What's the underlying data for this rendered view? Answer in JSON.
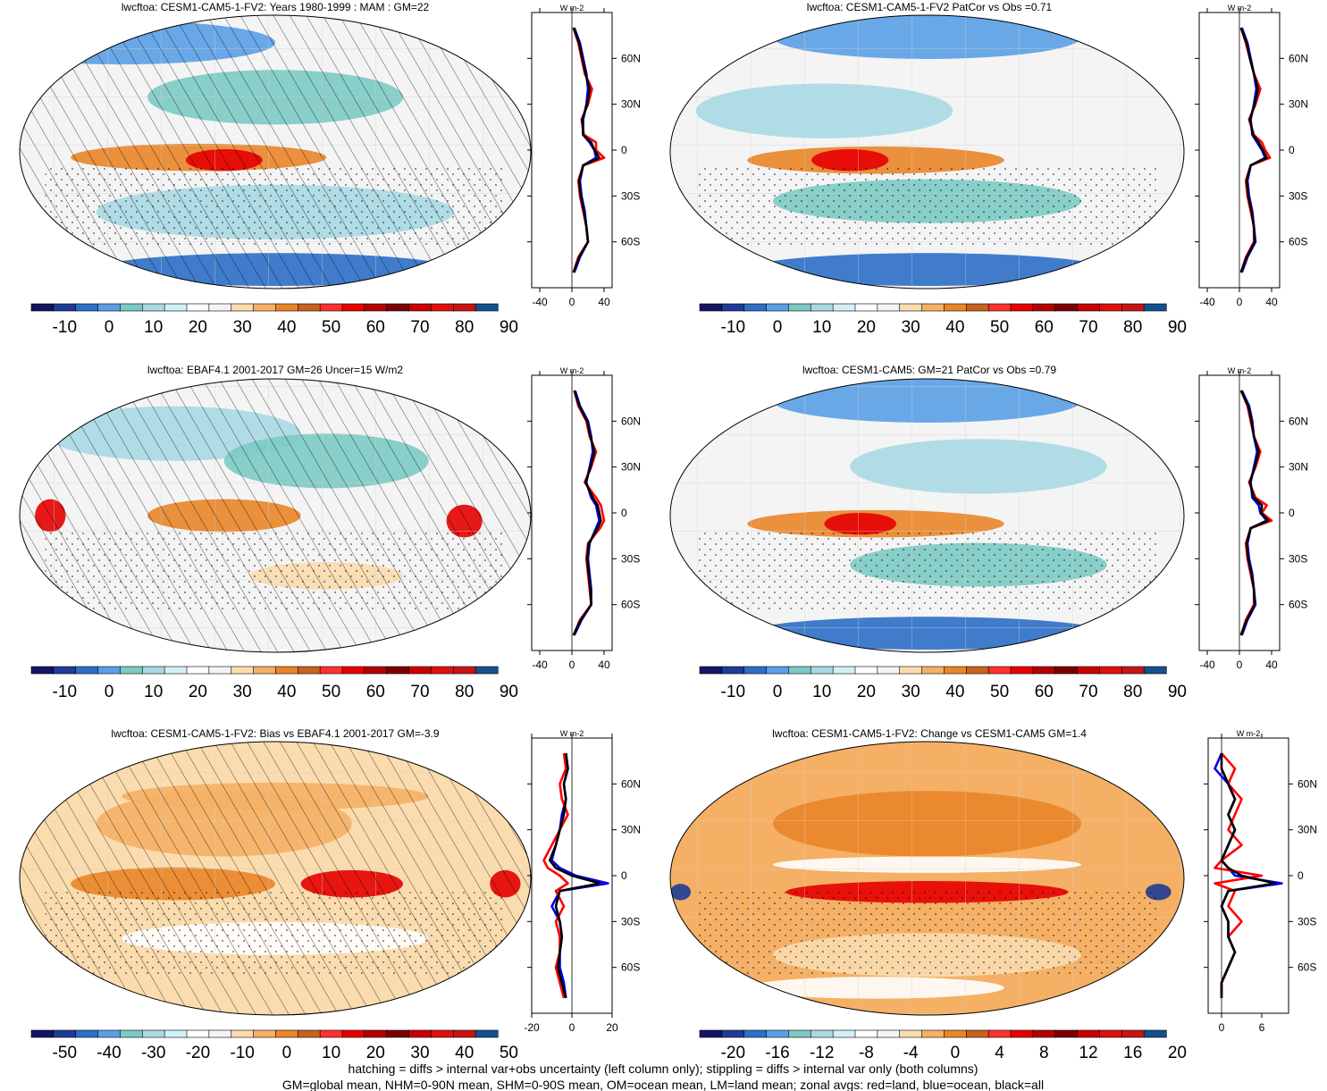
{
  "footer": {
    "line1": "hatching = diffs > internal var+obs uncertainty (left column only); stippling = diffs > internal var only (both columns)",
    "line2": "GM=global mean, NHM=0-90N mean, SHM=0-90S mean, OM=ocean mean, LM=land mean; zonal avgs: red=land, blue=ocean, black=all"
  },
  "colors": {
    "land_line": "#ff0000",
    "ocean_line": "#0000ee",
    "all_line": "#000000"
  },
  "chart_data": [
    {
      "type": "heatmap",
      "title": "lwcftoa: CESM1-CAM5-1-FV2: Years 1980-1999 : MAM : GM=22",
      "colorbar_type": "abs",
      "colorbar_labels": [
        "-10",
        "0",
        "10",
        "20",
        "30",
        "40",
        "50",
        "60",
        "70",
        "80",
        "90"
      ],
      "overlays": [
        "hatching",
        "stippling"
      ],
      "zonal_profile": {
        "xlabel": "W m-2",
        "x_ticks": [
          "-40",
          "0",
          "40"
        ],
        "xlim": [
          -50,
          50
        ],
        "y_ticks": [
          "60N",
          "30N",
          "0",
          "30S",
          "60S"
        ],
        "lat": [
          80,
          70,
          60,
          50,
          40,
          30,
          20,
          10,
          5,
          0,
          -5,
          -10,
          -20,
          -30,
          -40,
          -50,
          -60,
          -70,
          -80
        ],
        "series": [
          {
            "name": "land",
            "values": [
              2,
              8,
              12,
              16,
              25,
              20,
              12,
              15,
              30,
              30,
              40,
              14,
              8,
              10,
              14,
              18,
              20,
              8,
              2
            ]
          },
          {
            "name": "ocean",
            "values": [
              3,
              10,
              14,
              18,
              20,
              18,
              14,
              14,
              22,
              28,
              30,
              14,
              10,
              12,
              16,
              18,
              20,
              10,
              3
            ]
          },
          {
            "name": "all",
            "values": [
              2,
              9,
              13,
              17,
              22,
              19,
              13,
              14,
              24,
              28,
              34,
              14,
              9,
              11,
              15,
              18,
              20,
              9,
              2
            ]
          }
        ]
      }
    },
    {
      "type": "heatmap",
      "title": "lwcftoa: CESM1-CAM5-1-FV2 PatCor vs Obs =0.71",
      "colorbar_type": "abs",
      "colorbar_labels": [
        "-10",
        "0",
        "10",
        "20",
        "30",
        "40",
        "50",
        "60",
        "70",
        "80",
        "90"
      ],
      "overlays": [
        "stippling"
      ],
      "zonal_profile": {
        "xlabel": "W m-2",
        "x_ticks": [
          "-40",
          "0",
          "40"
        ],
        "xlim": [
          -50,
          50
        ],
        "y_ticks": [
          "60N",
          "30N",
          "0",
          "30S",
          "60S"
        ],
        "lat": [
          80,
          70,
          60,
          50,
          40,
          30,
          20,
          10,
          5,
          0,
          -5,
          -10,
          -20,
          -30,
          -40,
          -50,
          -60,
          -70,
          -80
        ],
        "series": [
          {
            "name": "land",
            "values": [
              2,
              8,
              13,
              18,
              26,
              20,
              12,
              18,
              28,
              32,
              38,
              14,
              8,
              10,
              14,
              18,
              18,
              8,
              2
            ]
          },
          {
            "name": "ocean",
            "values": [
              3,
              10,
              14,
              18,
              21,
              18,
              14,
              16,
              22,
              28,
              32,
              14,
              10,
              12,
              16,
              18,
              20,
              10,
              3
            ]
          },
          {
            "name": "all",
            "values": [
              2,
              9,
              13,
              18,
              23,
              19,
              13,
              17,
              24,
              29,
              34,
              14,
              9,
              11,
              15,
              18,
              19,
              9,
              2
            ]
          }
        ]
      }
    },
    {
      "type": "heatmap",
      "title": "lwcftoa: EBAF4.1 2001-2017 GM=26 Uncer=15 W/m2",
      "colorbar_type": "abs",
      "colorbar_labels": [
        "-10",
        "0",
        "10",
        "20",
        "30",
        "40",
        "50",
        "60",
        "70",
        "80",
        "90"
      ],
      "overlays": [
        "hatching",
        "stippling"
      ],
      "zonal_profile": {
        "xlabel": "W m-2",
        "x_ticks": [
          "-40",
          "0",
          "40"
        ],
        "xlim": [
          -50,
          50
        ],
        "y_ticks": [
          "60N",
          "30N",
          "0",
          "30S",
          "60S"
        ],
        "lat": [
          80,
          70,
          60,
          50,
          40,
          30,
          20,
          10,
          5,
          0,
          -5,
          -10,
          -20,
          -30,
          -40,
          -50,
          -60,
          -70,
          -80
        ],
        "series": [
          {
            "name": "land",
            "values": [
              3,
              8,
              18,
              22,
              30,
              24,
              16,
              30,
              36,
              38,
              40,
              35,
              20,
              18,
              20,
              22,
              24,
              10,
              2
            ]
          },
          {
            "name": "ocean",
            "values": [
              4,
              10,
              20,
              24,
              26,
              22,
              18,
              24,
              30,
              32,
              34,
              30,
              22,
              20,
              22,
              24,
              24,
              12,
              3
            ]
          },
          {
            "name": "all",
            "values": [
              3,
              9,
              19,
              23,
              28,
              23,
              17,
              26,
              32,
              34,
              36,
              32,
              21,
              19,
              21,
              23,
              24,
              11,
              2
            ]
          }
        ]
      }
    },
    {
      "type": "heatmap",
      "title": "lwcftoa: CESM1-CAM5: GM=21 PatCor vs Obs =0.79",
      "colorbar_type": "abs",
      "colorbar_labels": [
        "-10",
        "0",
        "10",
        "20",
        "30",
        "40",
        "50",
        "60",
        "70",
        "80",
        "90"
      ],
      "overlays": [
        "stippling"
      ],
      "zonal_profile": {
        "xlabel": "W m-2",
        "x_ticks": [
          "-40",
          "0",
          "40"
        ],
        "xlim": [
          -50,
          50
        ],
        "y_ticks": [
          "60N",
          "30N",
          "0",
          "30S",
          "60S"
        ],
        "lat": [
          80,
          70,
          60,
          50,
          40,
          30,
          20,
          10,
          5,
          0,
          -5,
          -10,
          -20,
          -30,
          -40,
          -50,
          -60,
          -70,
          -80
        ],
        "series": [
          {
            "name": "land",
            "values": [
              2,
              10,
              14,
              18,
              26,
              20,
              12,
              20,
              34,
              28,
              40,
              14,
              8,
              10,
              14,
              18,
              18,
              8,
              2
            ]
          },
          {
            "name": "ocean",
            "values": [
              3,
              12,
              16,
              18,
              22,
              18,
              14,
              16,
              24,
              26,
              34,
              14,
              10,
              12,
              16,
              18,
              20,
              10,
              3
            ]
          },
          {
            "name": "all",
            "values": [
              2,
              11,
              15,
              18,
              24,
              19,
              13,
              18,
              28,
              27,
              36,
              14,
              9,
              11,
              15,
              18,
              19,
              9,
              2
            ]
          }
        ]
      }
    },
    {
      "type": "heatmap",
      "title": "lwcftoa: CESM1-CAM5-1-FV2: Bias vs EBAF4.1 2001-2017 GM=-3.9",
      "colorbar_type": "diff",
      "colorbar_labels": [
        "-50",
        "-40",
        "-30",
        "-20",
        "-10",
        "0",
        "10",
        "20",
        "30",
        "40",
        "50"
      ],
      "overlays": [
        "hatching",
        "stippling"
      ],
      "zonal_profile": {
        "xlabel": "W m-2",
        "x_ticks": [
          "-20",
          "0",
          "20"
        ],
        "xlim": [
          -20,
          20
        ],
        "y_ticks": [
          "60N",
          "30N",
          "0",
          "30S",
          "60S"
        ],
        "lat": [
          80,
          70,
          60,
          50,
          40,
          30,
          20,
          10,
          5,
          0,
          -5,
          -10,
          -20,
          -30,
          -40,
          -50,
          -60,
          -70,
          -80
        ],
        "series": [
          {
            "name": "land",
            "values": [
              -4,
              -3,
              -6,
              -5,
              -2,
              -6,
              -10,
              -14,
              -12,
              -6,
              -2,
              -8,
              -4,
              -8,
              -6,
              -6,
              -8,
              -6,
              -4
            ]
          },
          {
            "name": "ocean",
            "values": [
              -3,
              -2,
              -4,
              -3,
              -5,
              -6,
              -8,
              -10,
              -6,
              2,
              18,
              -6,
              -10,
              -6,
              -5,
              -6,
              -6,
              -4,
              -3
            ]
          },
          {
            "name": "all",
            "values": [
              -3,
              -2,
              -4,
              -3,
              -4,
              -6,
              -8,
              -11,
              -8,
              0,
              14,
              -6,
              -8,
              -6,
              -5,
              -6,
              -7,
              -5,
              -3
            ]
          }
        ]
      }
    },
    {
      "type": "heatmap",
      "title": "lwcftoa: CESM1-CAM5-1-FV2: Change vs CESM1-CAM5 GM=1.4",
      "colorbar_type": "diff",
      "colorbar_labels": [
        "-20",
        "-16",
        "-12",
        "-8",
        "-4",
        "0",
        "4",
        "8",
        "12",
        "16",
        "20"
      ],
      "overlays": [
        "stippling"
      ],
      "zonal_profile": {
        "xlabel": "W m-2",
        "x_ticks": [
          "0",
          "6"
        ],
        "xlim": [
          -2,
          10
        ],
        "y_ticks": [
          "60N",
          "30N",
          "0",
          "30S",
          "60S"
        ],
        "lat": [
          80,
          70,
          60,
          50,
          40,
          30,
          20,
          10,
          5,
          0,
          -5,
          -10,
          -20,
          -30,
          -40,
          -50,
          -60,
          -70,
          -80
        ],
        "series": [
          {
            "name": "land",
            "values": [
              0,
              2,
              1,
              3,
              2,
              1,
              3,
              0,
              -1,
              6,
              -1,
              2,
              1,
              3,
              1,
              2,
              1,
              0,
              0
            ]
          },
          {
            "name": "ocean",
            "values": [
              0,
              -1,
              1,
              2,
              1,
              2,
              1,
              0,
              1,
              2,
              9,
              1,
              0,
              1,
              1,
              2,
              1,
              0,
              0
            ]
          },
          {
            "name": "all",
            "values": [
              0,
              0,
              1,
              2,
              1,
              2,
              1,
              0,
              1,
              3,
              8,
              1,
              0,
              1,
              1,
              2,
              1,
              0,
              0
            ]
          }
        ]
      }
    }
  ]
}
